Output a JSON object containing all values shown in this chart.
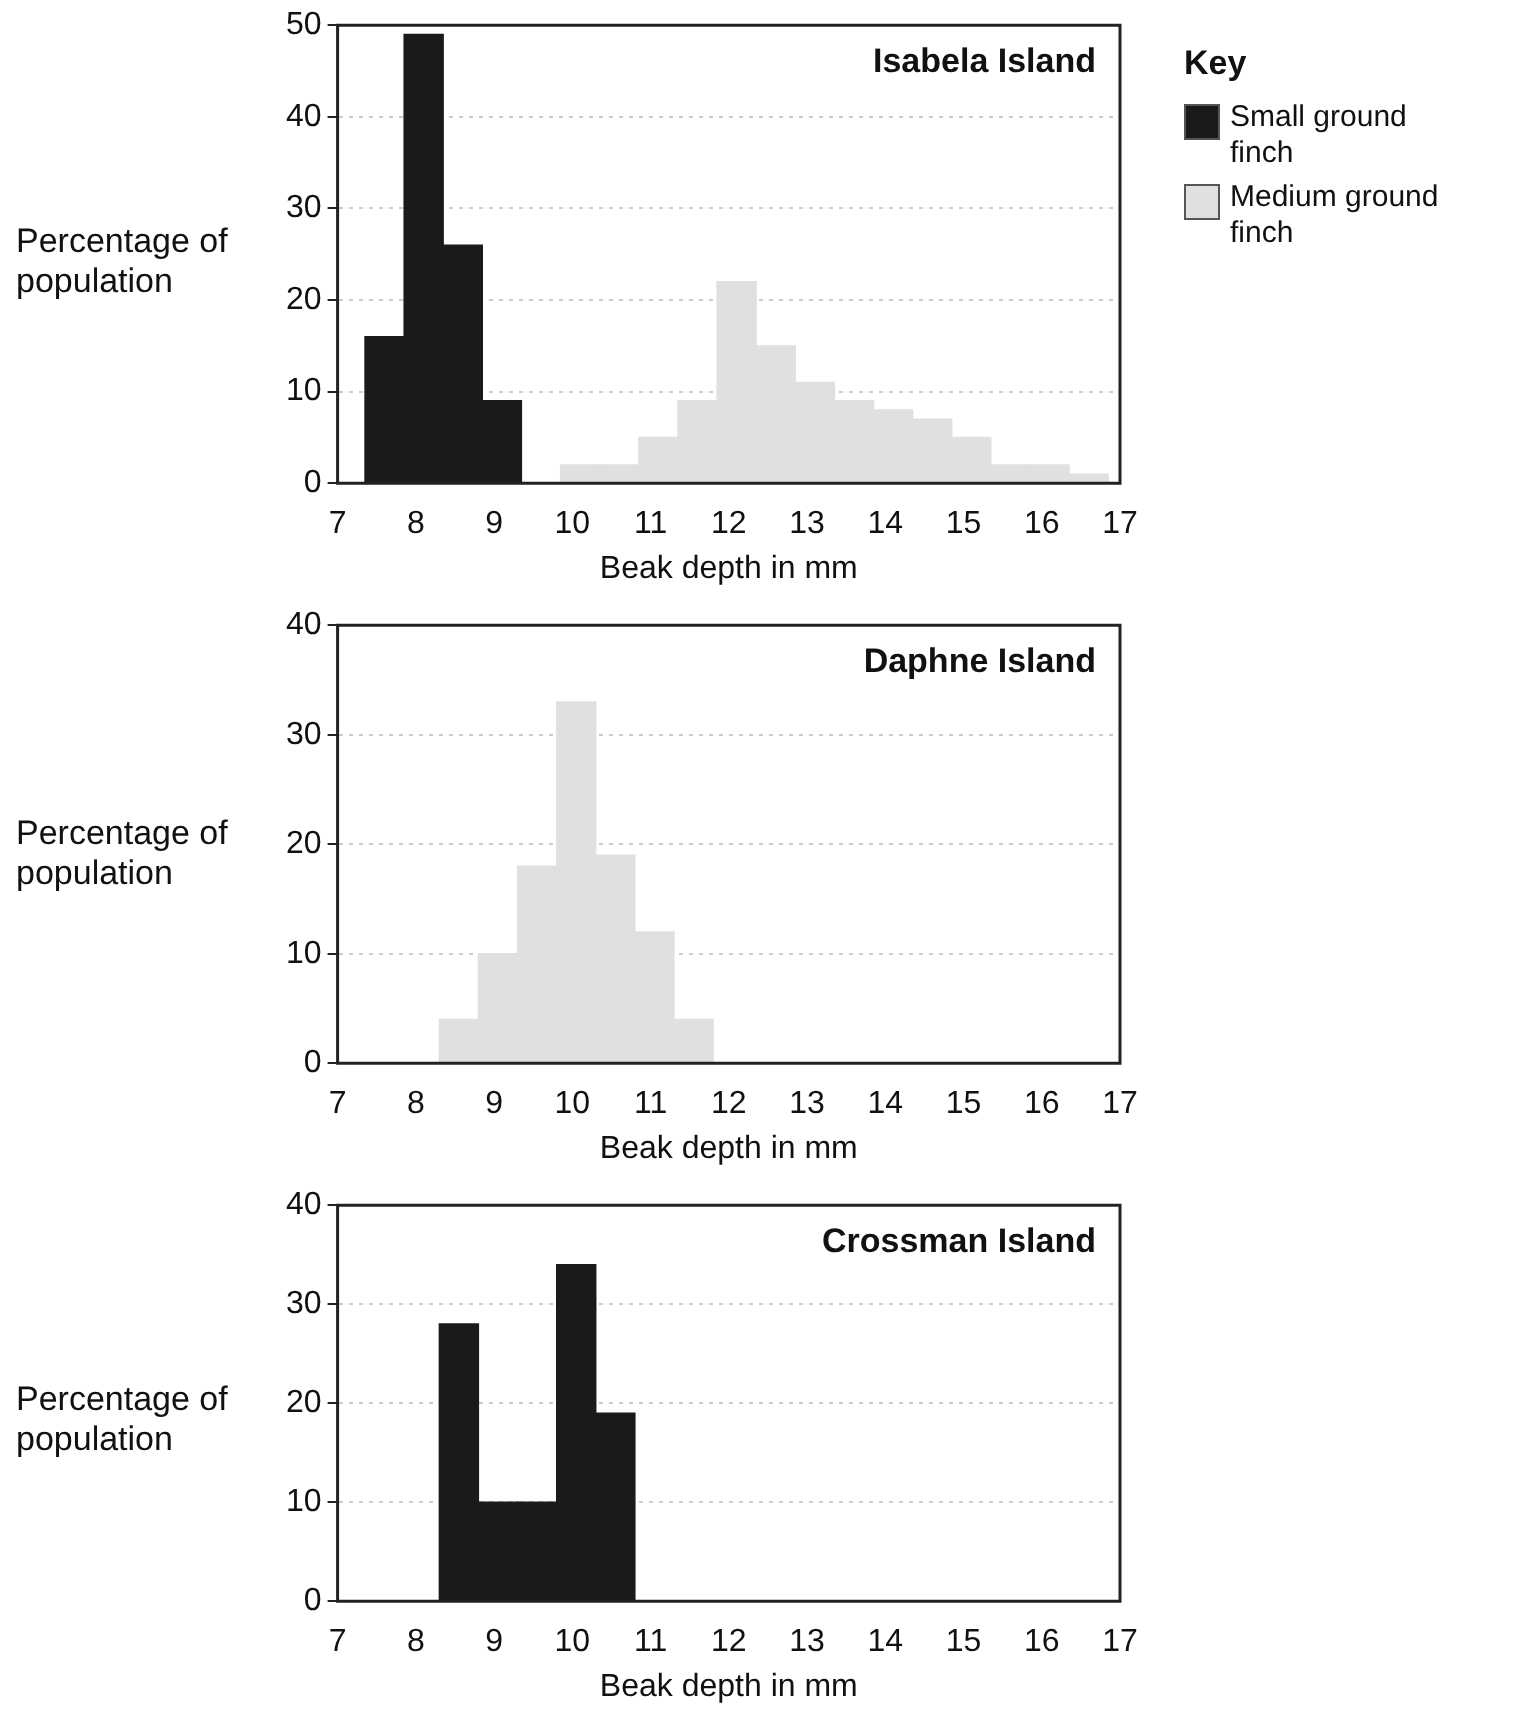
{
  "chart_data": [
    {
      "type": "histogram",
      "title": "Isabela Island",
      "xlabel": "Beak depth in mm",
      "ylabel": "Percentage of population",
      "legend_title": "Key",
      "legend": "right",
      "grid": "y",
      "xlim": [
        7,
        17
      ],
      "xticks": [
        7,
        8,
        9,
        10,
        11,
        12,
        13,
        14,
        15,
        16,
        17
      ],
      "ylim": [
        0,
        50
      ],
      "yticks": [
        0,
        10,
        20,
        30,
        40,
        50
      ],
      "bins": [
        7.35,
        7.85,
        8.35,
        8.85,
        9.35,
        9.85,
        10.35,
        10.85,
        11.35,
        11.85,
        12.35,
        12.85,
        13.35,
        13.85,
        14.35,
        14.85,
        15.35,
        15.85,
        16.35,
        16.85
      ],
      "series": [
        {
          "name": "Small ground finch",
          "color": "#1a1a1a",
          "values": [
            16,
            49,
            26,
            9,
            null,
            null,
            null,
            null,
            null,
            null,
            null,
            null,
            null,
            null,
            null,
            null,
            null,
            null,
            null
          ]
        },
        {
          "name": "Medium ground finch",
          "color": "#e0e0e0",
          "values": [
            null,
            null,
            null,
            null,
            null,
            2,
            2,
            5,
            9,
            22,
            15,
            11,
            9,
            8,
            7,
            5,
            2,
            2,
            1
          ]
        }
      ]
    },
    {
      "type": "histogram",
      "title": "Daphne Island",
      "xlabel": "Beak depth in mm",
      "ylabel": "Percentage of population",
      "grid": "y",
      "xlim": [
        7,
        17
      ],
      "xticks": [
        7,
        8,
        9,
        10,
        11,
        12,
        13,
        14,
        15,
        16,
        17
      ],
      "ylim": [
        0,
        40
      ],
      "yticks": [
        0,
        10,
        20,
        30,
        40
      ],
      "bins": [
        8.3,
        8.8,
        9.3,
        9.8,
        10.3,
        10.8,
        11.3,
        11.8
      ],
      "series": [
        {
          "color": "#e0e0e0",
          "values": [
            4,
            10,
            18,
            33,
            19,
            12,
            4
          ]
        }
      ]
    },
    {
      "type": "histogram",
      "title": "Crossman Island",
      "xlabel": "Beak depth in mm",
      "ylabel": "Percentage of population",
      "grid": "y",
      "xlim": [
        7,
        17
      ],
      "xticks": [
        7,
        8,
        9,
        10,
        11,
        12,
        13,
        14,
        15,
        16,
        17
      ],
      "ylim": [
        0,
        40
      ],
      "yticks": [
        0,
        10,
        20,
        30,
        40
      ],
      "bins": [
        8.3,
        8.8,
        9.3,
        9.8,
        10.3,
        10.8
      ],
      "series": [
        {
          "color": "#1a1a1a",
          "values": [
            28,
            10,
            10,
            34,
            19
          ]
        }
      ]
    }
  ]
}
